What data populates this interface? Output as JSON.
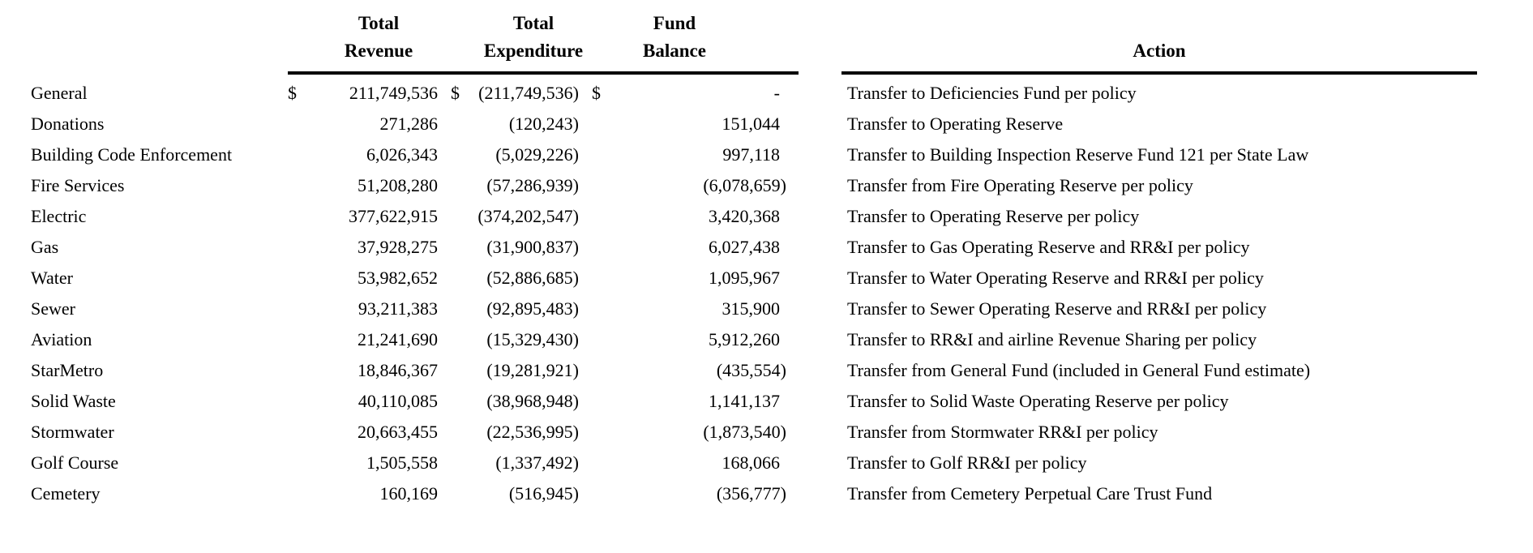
{
  "colors": {
    "text": "#000000",
    "background": "#ffffff",
    "rule": "#000000"
  },
  "table": {
    "headers": {
      "revenue_line1": "Total",
      "revenue_line2": "Revenue",
      "expenditure_line1": "Total",
      "expenditure_line2": "Expenditure",
      "balance_line1": "Fund",
      "balance_line2": "Balance",
      "action": "Action"
    },
    "rows": [
      {
        "fund": "General",
        "dollar_revenue": "$",
        "revenue": "211,749,536",
        "dollar_expenditure": "$",
        "expenditure": "(211,749,536)",
        "dollar_balance": "$",
        "balance": "-",
        "action": "Transfer to Deficiencies Fund per policy"
      },
      {
        "fund": "Donations",
        "revenue": "271,286",
        "expenditure": "(120,243)",
        "balance": "151,044",
        "action": "Transfer to Operating Reserve"
      },
      {
        "fund": "Building Code Enforcement",
        "revenue": "6,026,343",
        "expenditure": "(5,029,226)",
        "balance": "997,118",
        "action": "Transfer to Building Inspection Reserve Fund 121 per State Law"
      },
      {
        "fund": "Fire Services",
        "revenue": "51,208,280",
        "expenditure": "(57,286,939)",
        "balance": "(6,078,659)",
        "action": "Transfer from Fire Operating Reserve per policy"
      },
      {
        "fund": "Electric",
        "revenue": "377,622,915",
        "expenditure": "(374,202,547)",
        "balance": "3,420,368",
        "action": "Transfer to Operating Reserve per policy"
      },
      {
        "fund": "Gas",
        "revenue": "37,928,275",
        "expenditure": "(31,900,837)",
        "balance": "6,027,438",
        "action": "Transfer to Gas Operating Reserve and RR&I per policy"
      },
      {
        "fund": "Water",
        "revenue": "53,982,652",
        "expenditure": "(52,886,685)",
        "balance": "1,095,967",
        "action": "Transfer to Water Operating Reserve and RR&I per policy"
      },
      {
        "fund": "Sewer",
        "revenue": "93,211,383",
        "expenditure": "(92,895,483)",
        "balance": "315,900",
        "action": "Transfer to Sewer Operating Reserve and RR&I per policy"
      },
      {
        "fund": "Aviation",
        "revenue": "21,241,690",
        "expenditure": "(15,329,430)",
        "balance": "5,912,260",
        "action": "Transfer to RR&I and airline Revenue Sharing per policy"
      },
      {
        "fund": "StarMetro",
        "revenue": "18,846,367",
        "expenditure": "(19,281,921)",
        "balance": "(435,554)",
        "action": "Transfer from General Fund (included in General Fund estimate)"
      },
      {
        "fund": "Solid Waste",
        "revenue": "40,110,085",
        "expenditure": "(38,968,948)",
        "balance": "1,141,137",
        "action": "Transfer to Solid Waste Operating Reserve per policy"
      },
      {
        "fund": "Stormwater",
        "revenue": "20,663,455",
        "expenditure": "(22,536,995)",
        "balance": "(1,873,540)",
        "action": "Transfer from Stormwater RR&I per policy"
      },
      {
        "fund": "Golf Course",
        "revenue": "1,505,558",
        "expenditure": "(1,337,492)",
        "balance": "168,066",
        "action": "Transfer to Golf RR&I per policy"
      },
      {
        "fund": "Cemetery",
        "revenue": "160,169",
        "expenditure": "(516,945)",
        "balance": "(356,777)",
        "action": "Transfer from Cemetery Perpetual Care Trust Fund"
      }
    ]
  }
}
